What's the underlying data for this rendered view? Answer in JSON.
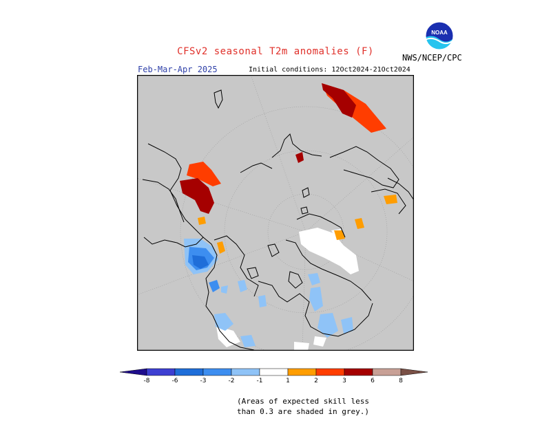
{
  "header": {
    "title": "CFSv2 seasonal T2m anomalies (F)",
    "season": "Feb-Mar-Apr 2025",
    "initial_conditions": "Initial conditions: 12Oct2024-21Oct2024",
    "agency": "NWS/NCEP/CPC",
    "logo_text": "NOAA"
  },
  "legend": {
    "ticks": [
      "-8",
      "-6",
      "-3",
      "-2",
      "-1",
      "1",
      "2",
      "3",
      "6",
      "8"
    ],
    "colors": {
      "below_8": "#1e0d8c",
      "neg_8_6": "#3d3fd2",
      "neg_6_3": "#1f6ed9",
      "neg_3_2": "#3d8ef0",
      "neg_2_1": "#8fc3f7",
      "neutral": "#ffffff",
      "pos_1_2": "#ff9d00",
      "pos_2_3": "#ff3d00",
      "pos_3_6": "#a50000",
      "pos_6_8": "#c8a096",
      "above_8": "#7a5046"
    }
  },
  "map": {
    "no_skill_color": "#c8c8c8",
    "land_outline_color": "#000000"
  },
  "footnote": {
    "line1": "(Areas of expected skill less",
    "line2": "than 0.3 are shaded in grey.)"
  }
}
